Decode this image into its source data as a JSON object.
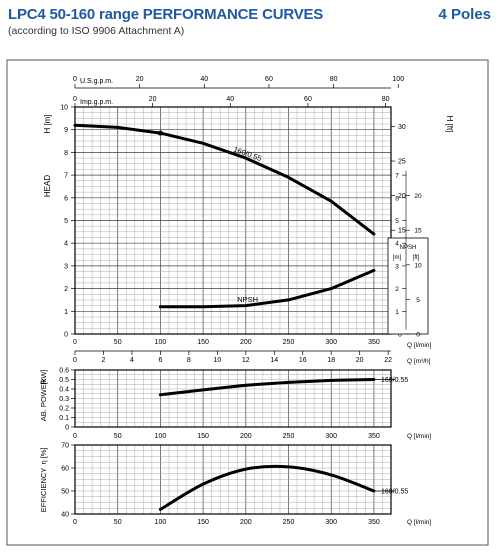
{
  "header": {
    "title": "LPC4 50-160 range PERFORMANCE CURVES",
    "subtitle": "(according to ISO 9906 Attachment A)",
    "poles": "4 Poles"
  },
  "chart_data": [
    {
      "type": "line",
      "name": "head",
      "ylabel": "HEAD",
      "ylabel_left_unit": "H [m]",
      "ylabel_right_unit": "H [ft]",
      "xlabel_bottom_1": "Q [l/min]",
      "xlabel_bottom_2": "Q [m³/h]",
      "top_axis_1_label": "U.S.g.p.m.",
      "top_axis_2_label": "Imp.g.p.m.",
      "xlim": [
        0,
        370
      ],
      "ylim": [
        0,
        10
      ],
      "grid": true,
      "top_axis_1_ticks": [
        "0",
        "20",
        "40",
        "60",
        "80",
        "100"
      ],
      "top_axis_2_ticks": [
        "0",
        "20",
        "40",
        "60",
        "80"
      ],
      "bottom_axis_1_ticks": [
        "0",
        "50",
        "100",
        "150",
        "200",
        "250",
        "300",
        "350"
      ],
      "bottom_axis_2_ticks": [
        "0",
        "2",
        "4",
        "6",
        "8",
        "10",
        "12",
        "14",
        "16",
        "18",
        "20",
        "22"
      ],
      "left_ticks": [
        "0",
        "1",
        "2",
        "3",
        "4",
        "5",
        "6",
        "7",
        "8",
        "9",
        "10"
      ],
      "right_ticks": [
        "0",
        "5",
        "10",
        "15",
        "20",
        "25",
        "30"
      ],
      "series": [
        {
          "name": "160/0.55",
          "x": [
            0,
            50,
            100,
            150,
            200,
            250,
            300,
            350
          ],
          "y": [
            9.2,
            9.1,
            8.85,
            8.4,
            7.75,
            6.9,
            5.85,
            4.4
          ]
        },
        {
          "name": "NPSH",
          "x": [
            100,
            150,
            200,
            250,
            300,
            350
          ],
          "y": [
            1.2,
            1.2,
            1.25,
            1.5,
            2.0,
            2.8
          ]
        }
      ],
      "npsh_box": {
        "title": "NPSH",
        "unit_m": "[m]",
        "unit_ft": "[ft]",
        "m_ticks": [
          "1",
          "2",
          "3",
          "4",
          "5",
          "6",
          "7"
        ],
        "ft_ticks": [
          "0",
          "5",
          "10",
          "15",
          "20"
        ]
      }
    },
    {
      "type": "line",
      "name": "power",
      "ylabel": "AB. POWER",
      "yunit": "[kW]",
      "xlabel": "Q [l/min]",
      "xlim": [
        0,
        370
      ],
      "ylim": [
        0,
        0.6
      ],
      "grid": true,
      "x_ticks": [
        "0",
        "50",
        "100",
        "150",
        "200",
        "250",
        "300",
        "350"
      ],
      "y_ticks": [
        "0",
        "0.1",
        "0.2",
        "0.3",
        "0.4",
        "0.5",
        "0.6"
      ],
      "series": [
        {
          "name": "160/0.55",
          "x": [
            100,
            150,
            200,
            250,
            300,
            350
          ],
          "y": [
            0.34,
            0.39,
            0.44,
            0.47,
            0.49,
            0.5
          ]
        }
      ]
    },
    {
      "type": "line",
      "name": "efficiency",
      "ylabel": "EFFICIENCY",
      "yunit": "η [%]",
      "xlabel": "Q [l/min]",
      "xlim": [
        0,
        370
      ],
      "ylim": [
        40,
        70
      ],
      "grid": true,
      "x_ticks": [
        "0",
        "50",
        "100",
        "150",
        "200",
        "250",
        "300",
        "350"
      ],
      "y_ticks": [
        "40",
        "50",
        "60",
        "70"
      ],
      "series": [
        {
          "name": "160/0.55",
          "x": [
            100,
            150,
            200,
            250,
            300,
            350
          ],
          "y": [
            42,
            53,
            59.5,
            60.5,
            57,
            50
          ]
        }
      ]
    }
  ]
}
